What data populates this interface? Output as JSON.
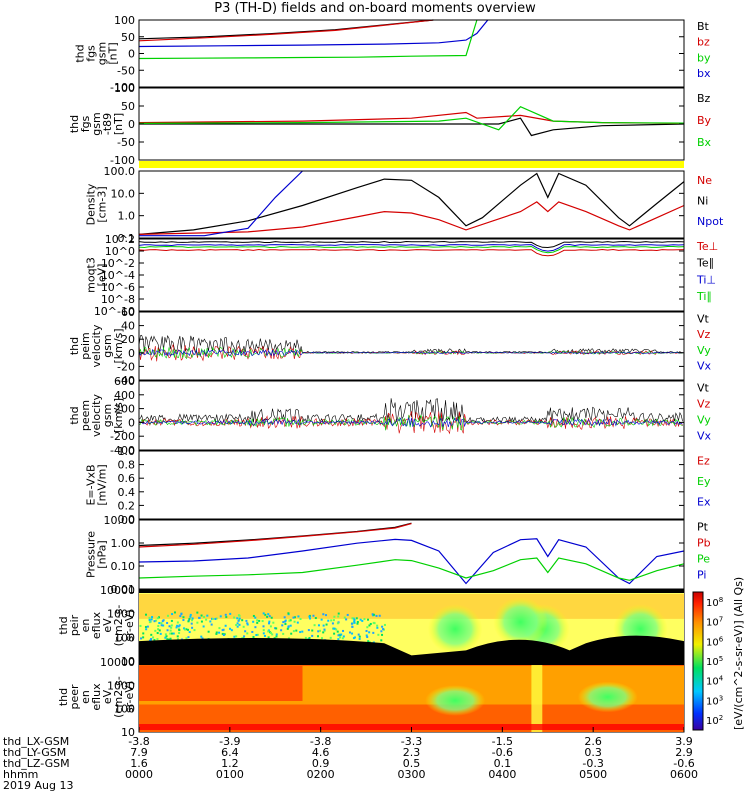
{
  "title": "P3 (TH-D) fields and on-board moments overview",
  "chart_data": [
    {
      "type": "line",
      "ylabel": [
        "thd",
        "fgs",
        "gsm",
        "[nT]"
      ],
      "yticks": [
        "100",
        "50",
        "0",
        "-50",
        "-100"
      ],
      "ylim": [
        -100,
        100
      ],
      "legend": [
        {
          "name": "Bt",
          "color": "#000000"
        },
        {
          "name": "bz",
          "color": "#d40000"
        },
        {
          "name": "by",
          "color": "#00d000"
        },
        {
          "name": "bx",
          "color": "#0000d0"
        }
      ],
      "series": [
        {
          "name": "Bt",
          "points": [
            [
              0,
              44
            ],
            [
              0.12,
              50
            ],
            [
              0.24,
              59
            ],
            [
              0.36,
              71
            ],
            [
              0.46,
              87
            ],
            [
              0.54,
              100
            ]
          ]
        },
        {
          "name": "bz",
          "points": [
            [
              0,
              38
            ],
            [
              0.12,
              47
            ],
            [
              0.24,
              57
            ],
            [
              0.36,
              69
            ],
            [
              0.46,
              86
            ],
            [
              0.54,
              100
            ]
          ]
        },
        {
          "name": "bx",
          "points": [
            [
              0,
              21
            ],
            [
              0.15,
              23
            ],
            [
              0.3,
              25
            ],
            [
              0.45,
              28
            ],
            [
              0.55,
              32
            ],
            [
              0.6,
              40
            ],
            [
              0.62,
              60
            ],
            [
              0.64,
              100
            ]
          ]
        },
        {
          "name": "by",
          "points": [
            [
              0,
              -15
            ],
            [
              0.1,
              -14
            ],
            [
              0.2,
              -13
            ],
            [
              0.3,
              -12
            ],
            [
              0.4,
              -11
            ],
            [
              0.5,
              -8
            ],
            [
              0.6,
              -6
            ],
            [
              0.62,
              100
            ]
          ]
        }
      ]
    },
    {
      "type": "line",
      "ylabel": [
        "thd",
        "fgs",
        "gsm",
        "-t89",
        "[nT]"
      ],
      "yticks": [
        "100",
        "50",
        "0",
        "-50",
        "-100"
      ],
      "ylim": [
        -125,
        125
      ],
      "legend": [
        {
          "name": "Bz",
          "color": "#000000"
        },
        {
          "name": "By",
          "color": "#d40000"
        },
        {
          "name": "Bx",
          "color": "#00d000"
        }
      ],
      "series": [
        {
          "name": "Bz",
          "points": [
            [
              0,
              0
            ],
            [
              0.5,
              0
            ],
            [
              0.66,
              0
            ],
            [
              0.7,
              20
            ],
            [
              0.72,
              -40
            ],
            [
              0.76,
              -20
            ],
            [
              0.85,
              -6
            ],
            [
              1,
              0
            ]
          ]
        },
        {
          "name": "By",
          "points": [
            [
              0,
              5
            ],
            [
              0.3,
              10
            ],
            [
              0.5,
              20
            ],
            [
              0.6,
              40
            ],
            [
              0.62,
              20
            ],
            [
              0.7,
              30
            ],
            [
              0.76,
              10
            ],
            [
              0.85,
              5
            ],
            [
              1,
              2
            ]
          ]
        },
        {
          "name": "Bx",
          "points": [
            [
              0,
              2
            ],
            [
              0.3,
              5
            ],
            [
              0.55,
              10
            ],
            [
              0.6,
              20
            ],
            [
              0.66,
              -20
            ],
            [
              0.7,
              60
            ],
            [
              0.76,
              10
            ],
            [
              0.85,
              5
            ],
            [
              1,
              3
            ]
          ]
        }
      ]
    },
    {
      "type": "line",
      "ylabel": [
        "Density",
        "[cm-3]"
      ],
      "scale": "log",
      "yticks": [
        "100.0",
        "10.0",
        "1.0",
        "0.1"
      ],
      "ylim": [
        0.1,
        200
      ],
      "legend": [
        {
          "name": "Ne",
          "color": "#d40000"
        },
        {
          "name": "Ni",
          "color": "#000000"
        },
        {
          "name": "Npot",
          "color": "#0000d0"
        }
      ],
      "series": [
        {
          "name": "Ni",
          "points": [
            [
              0,
              0.15
            ],
            [
              0.1,
              0.25
            ],
            [
              0.2,
              0.7
            ],
            [
              0.3,
              4
            ],
            [
              0.4,
              30
            ],
            [
              0.45,
              80
            ],
            [
              0.5,
              70
            ],
            [
              0.55,
              10
            ],
            [
              0.6,
              0.4
            ],
            [
              0.63,
              1
            ],
            [
              0.7,
              40
            ],
            [
              0.73,
              150
            ],
            [
              0.75,
              10
            ],
            [
              0.77,
              150
            ],
            [
              0.82,
              40
            ],
            [
              0.88,
              1
            ],
            [
              0.9,
              0.4
            ],
            [
              0.95,
              5
            ],
            [
              1,
              60
            ]
          ]
        },
        {
          "name": "Ne",
          "points": [
            [
              0,
              0.15
            ],
            [
              0.2,
              0.2
            ],
            [
              0.3,
              0.35
            ],
            [
              0.4,
              1.1
            ],
            [
              0.45,
              2
            ],
            [
              0.5,
              1.7
            ],
            [
              0.55,
              0.8
            ],
            [
              0.6,
              0.25
            ],
            [
              0.7,
              2
            ],
            [
              0.73,
              6
            ],
            [
              0.75,
              2
            ],
            [
              0.77,
              6
            ],
            [
              0.82,
              2
            ],
            [
              0.88,
              0.4
            ],
            [
              0.9,
              0.25
            ],
            [
              0.95,
              1
            ],
            [
              1,
              4
            ]
          ]
        },
        {
          "name": "Npot",
          "points": [
            [
              0,
              0.13
            ],
            [
              0.12,
              0.13
            ],
            [
              0.2,
              0.3
            ],
            [
              0.25,
              10
            ],
            [
              0.3,
              200
            ]
          ]
        }
      ]
    },
    {
      "type": "line",
      "ylabel": [
        "moqt3",
        "[eV]"
      ],
      "scale": "log",
      "yticks": [
        "10^2",
        "10^0",
        "10^-2",
        "10^-4",
        "10^-6",
        "10^-8",
        "10^-10"
      ],
      "legend": [
        {
          "name": "Te⊥",
          "color": "#d40000"
        },
        {
          "name": "Te∥",
          "color": "#000000"
        },
        {
          "name": "Ti⊥",
          "color": "#0000d0"
        },
        {
          "name": "Ti∥",
          "color": "#00d000"
        }
      ],
      "series": []
    },
    {
      "type": "line",
      "ylabel": [
        "thd",
        "peim",
        "velocity",
        "gsm",
        "[km/s]"
      ],
      "yticks": [
        "60",
        "40",
        "20",
        "0",
        "-20",
        "-40"
      ],
      "ylim": [
        -40,
        60
      ],
      "legend": [
        {
          "name": "Vt",
          "color": "#000000"
        },
        {
          "name": "Vz",
          "color": "#d40000"
        },
        {
          "name": "Vy",
          "color": "#00d000"
        },
        {
          "name": "Vx",
          "color": "#0000d0"
        }
      ],
      "series": []
    },
    {
      "type": "line",
      "ylabel": [
        "thd",
        "peem",
        "velocity",
        "gsm",
        "[km/s]"
      ],
      "yticks": [
        "600",
        "400",
        "200",
        "0",
        "-200",
        "-400"
      ],
      "ylim": [
        -400,
        600
      ],
      "legend": [
        {
          "name": "Vt",
          "color": "#000000"
        },
        {
          "name": "Vz",
          "color": "#d40000"
        },
        {
          "name": "Vy",
          "color": "#00d000"
        },
        {
          "name": "Vx",
          "color": "#0000d0"
        }
      ],
      "series": []
    },
    {
      "type": "line",
      "ylabel": [
        "E=-VxB",
        "[mV/m]"
      ],
      "yticks": [
        "1.0",
        "0.8",
        "0.6",
        "0.4",
        "0.2",
        "0.0"
      ],
      "ylim": [
        0,
        1
      ],
      "legend": [
        {
          "name": "Ez",
          "color": "#d40000"
        },
        {
          "name": "Ey",
          "color": "#00d000"
        },
        {
          "name": "Ex",
          "color": "#0000d0"
        }
      ],
      "series": []
    },
    {
      "type": "line",
      "ylabel": [
        "Pressure",
        "[nPa]"
      ],
      "scale": "log",
      "yticks": [
        "10.00",
        "1.00",
        "0.10",
        "0.01"
      ],
      "ylim": [
        0.005,
        30
      ],
      "legend": [
        {
          "name": "Pt",
          "color": "#000000"
        },
        {
          "name": "Pb",
          "color": "#d40000"
        },
        {
          "name": "Pe",
          "color": "#00d000"
        },
        {
          "name": "Pi",
          "color": "#0000d0"
        }
      ],
      "series": [
        {
          "name": "Pt",
          "points": [
            [
              0,
              1.2
            ],
            [
              0.1,
              1.6
            ],
            [
              0.2,
              2.4
            ],
            [
              0.3,
              4
            ],
            [
              0.4,
              7
            ],
            [
              0.47,
              12
            ],
            [
              0.5,
              20
            ]
          ]
        },
        {
          "name": "Pb",
          "points": [
            [
              0,
              1.0
            ],
            [
              0.1,
              1.4
            ],
            [
              0.2,
              2.2
            ],
            [
              0.3,
              3.8
            ],
            [
              0.4,
              6.8
            ],
            [
              0.47,
              11
            ],
            [
              0.5,
              19
            ]
          ]
        },
        {
          "name": "Pi",
          "points": [
            [
              0,
              0.15
            ],
            [
              0.1,
              0.17
            ],
            [
              0.2,
              0.25
            ],
            [
              0.3,
              0.6
            ],
            [
              0.4,
              1.6
            ],
            [
              0.47,
              2.6
            ],
            [
              0.5,
              2.3
            ],
            [
              0.55,
              0.6
            ],
            [
              0.6,
              0.01
            ],
            [
              0.65,
              0.5
            ],
            [
              0.7,
              2.5
            ],
            [
              0.73,
              2.8
            ],
            [
              0.75,
              0.3
            ],
            [
              0.77,
              2.5
            ],
            [
              0.82,
              1
            ],
            [
              0.88,
              0.02
            ],
            [
              0.9,
              0.01
            ],
            [
              0.95,
              0.3
            ],
            [
              1,
              0.6
            ]
          ]
        },
        {
          "name": "Pe",
          "points": [
            [
              0,
              0.02
            ],
            [
              0.1,
              0.025
            ],
            [
              0.2,
              0.03
            ],
            [
              0.3,
              0.04
            ],
            [
              0.4,
              0.1
            ],
            [
              0.47,
              0.2
            ],
            [
              0.5,
              0.18
            ],
            [
              0.55,
              0.07
            ],
            [
              0.6,
              0.02
            ],
            [
              0.65,
              0.05
            ],
            [
              0.7,
              0.2
            ],
            [
              0.73,
              0.25
            ],
            [
              0.75,
              0.04
            ],
            [
              0.77,
              0.25
            ],
            [
              0.82,
              0.12
            ],
            [
              0.88,
              0.02
            ],
            [
              0.9,
              0.015
            ],
            [
              0.95,
              0.05
            ],
            [
              1,
              0.12
            ]
          ]
        }
      ]
    },
    {
      "type": "heatmap",
      "ylabel": [
        "thd",
        "peir",
        "en",
        "eflux",
        "eV",
        "(cm2-s-",
        "sr-eV)"
      ],
      "scale": "log",
      "yticks": [
        "10000",
        "1000",
        "100",
        "10"
      ]
    },
    {
      "type": "heatmap",
      "ylabel": [
        "thd",
        "peer",
        "en",
        "eflux",
        "eV",
        "(cm2-s-",
        "sr-eV)"
      ],
      "scale": "log",
      "yticks": [
        "10000",
        "1000",
        "100",
        "10"
      ]
    }
  ],
  "colorbar": {
    "ticks": [
      "10^8",
      "10^7",
      "10^6",
      "10^5",
      "10^4",
      "10^3",
      "10^2"
    ],
    "label": "[eV/(cm^2-s-sr-eV)] (All Qs)"
  },
  "x_axis": {
    "row_labels": [
      "thd_LX-GSM",
      "thd_LY-GSM",
      "thd_LZ-GSM",
      "hhmm",
      "2019 Aug 13"
    ],
    "columns": [
      [
        "-3.8",
        "7.9",
        "1.6",
        "0000"
      ],
      [
        "-3.9",
        "6.4",
        "1.2",
        "0100"
      ],
      [
        "-3.8",
        "4.6",
        "0.9",
        "0200"
      ],
      [
        "-3.3",
        "2.3",
        "0.5",
        "0300"
      ],
      [
        "-1.5",
        "-0.6",
        "0.1",
        "0400"
      ],
      [
        "2.6",
        "0.3",
        "-0.3",
        "0500"
      ],
      [
        "3.9",
        "2.9",
        "-0.6",
        "0600"
      ]
    ]
  }
}
